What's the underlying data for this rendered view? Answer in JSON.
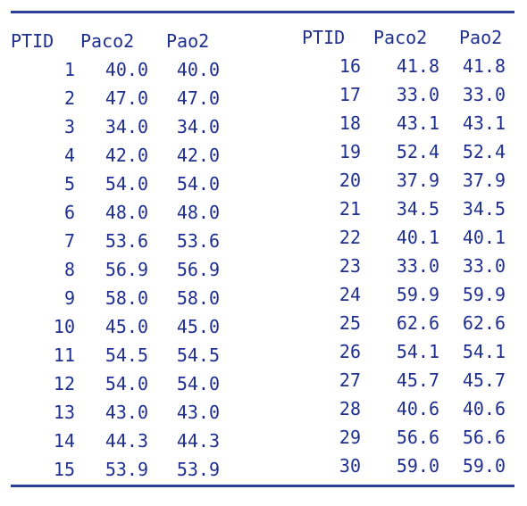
{
  "headers": {
    "ptid": "PTID",
    "paco2": "Paco2",
    "pao2": "Pao2"
  },
  "left_rows": [
    {
      "ptid": "1",
      "paco2": "40.0",
      "pao2": "40.0"
    },
    {
      "ptid": "2",
      "paco2": "47.0",
      "pao2": "47.0"
    },
    {
      "ptid": "3",
      "paco2": "34.0",
      "pao2": "34.0"
    },
    {
      "ptid": "4",
      "paco2": "42.0",
      "pao2": "42.0"
    },
    {
      "ptid": "5",
      "paco2": "54.0",
      "pao2": "54.0"
    },
    {
      "ptid": "6",
      "paco2": "48.0",
      "pao2": "48.0"
    },
    {
      "ptid": "7",
      "paco2": "53.6",
      "pao2": "53.6"
    },
    {
      "ptid": "8",
      "paco2": "56.9",
      "pao2": "56.9"
    },
    {
      "ptid": "9",
      "paco2": "58.0",
      "pao2": "58.0"
    },
    {
      "ptid": "10",
      "paco2": "45.0",
      "pao2": "45.0"
    },
    {
      "ptid": "11",
      "paco2": "54.5",
      "pao2": "54.5"
    },
    {
      "ptid": "12",
      "paco2": "54.0",
      "pao2": "54.0"
    },
    {
      "ptid": "13",
      "paco2": "43.0",
      "pao2": "43.0"
    },
    {
      "ptid": "14",
      "paco2": "44.3",
      "pao2": "44.3"
    },
    {
      "ptid": "15",
      "paco2": "53.9",
      "pao2": "53.9"
    }
  ],
  "right_rows": [
    {
      "ptid": "16",
      "paco2": "41.8",
      "pao2": "41.8"
    },
    {
      "ptid": "17",
      "paco2": "33.0",
      "pao2": "33.0"
    },
    {
      "ptid": "18",
      "paco2": "43.1",
      "pao2": "43.1"
    },
    {
      "ptid": "19",
      "paco2": "52.4",
      "pao2": "52.4"
    },
    {
      "ptid": "20",
      "paco2": "37.9",
      "pao2": "37.9"
    },
    {
      "ptid": "21",
      "paco2": "34.5",
      "pao2": "34.5"
    },
    {
      "ptid": "22",
      "paco2": "40.1",
      "pao2": "40.1"
    },
    {
      "ptid": "23",
      "paco2": "33.0",
      "pao2": "33.0"
    },
    {
      "ptid": "24",
      "paco2": "59.9",
      "pao2": "59.9"
    },
    {
      "ptid": "25",
      "paco2": "62.6",
      "pao2": "62.6"
    },
    {
      "ptid": "26",
      "paco2": "54.1",
      "pao2": "54.1"
    },
    {
      "ptid": "27",
      "paco2": "45.7",
      "pao2": "45.7"
    },
    {
      "ptid": "28",
      "paco2": "40.6",
      "pao2": "40.6"
    },
    {
      "ptid": "29",
      "paco2": "56.6",
      "pao2": "56.6"
    },
    {
      "ptid": "30",
      "paco2": "59.0",
      "pao2": "59.0"
    }
  ]
}
